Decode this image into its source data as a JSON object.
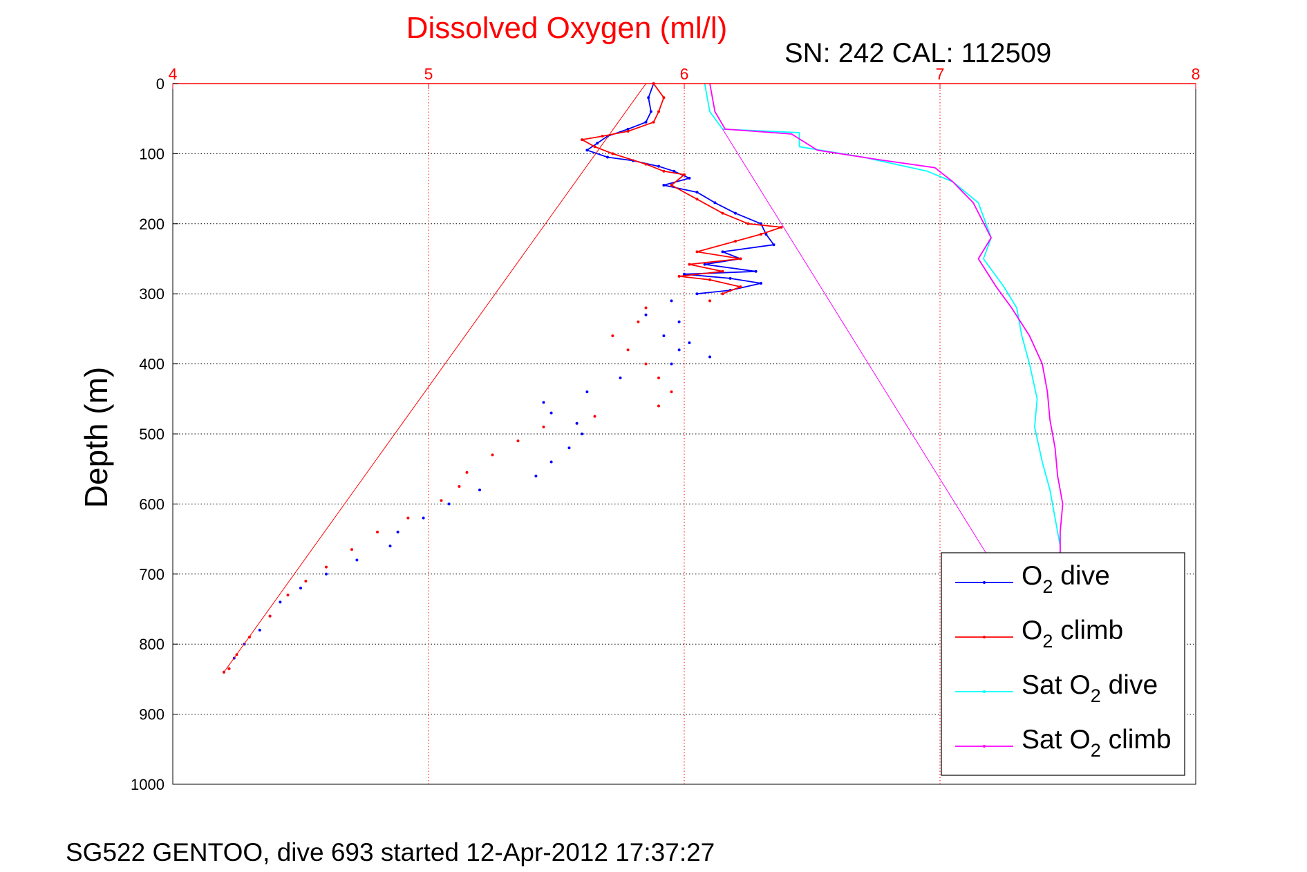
{
  "chart_data": {
    "type": "line",
    "title": "Dissolved Oxygen (ml/l)",
    "subtitle": "SN: 242  CAL: 112509",
    "ylabel": "Depth (m)",
    "footer": "SG522 GENTOO, dive 693 started 12-Apr-2012 17:37:27",
    "xlim": [
      4,
      8
    ],
    "ylim": [
      0,
      1000
    ],
    "y_reversed": true,
    "x_axis_position": "top",
    "x_ticks": [
      4,
      5,
      6,
      7,
      8
    ],
    "y_ticks": [
      0,
      100,
      200,
      300,
      400,
      500,
      600,
      700,
      800,
      900,
      1000
    ],
    "grid": true,
    "legend_position": "bottom-right",
    "colors": {
      "o2_dive": "#0000ff",
      "o2_climb": "#ff0000",
      "sat_dive": "#00ffff",
      "sat_climb": "#ff00ff",
      "xaxis": "#ff0000",
      "grid_x": "#ff0000",
      "grid_y": "#000000"
    },
    "series": [
      {
        "key": "o2_dive",
        "legend": {
          "main": "O",
          "sub": "2",
          "rest": " dive"
        },
        "color": "#0000ff",
        "style": "line+dots",
        "points": [
          [
            5.88,
            0
          ],
          [
            5.86,
            20
          ],
          [
            5.87,
            40
          ],
          [
            5.85,
            55
          ],
          [
            5.78,
            65
          ],
          [
            5.7,
            75
          ],
          [
            5.66,
            85
          ],
          [
            5.62,
            95
          ],
          [
            5.7,
            105
          ],
          [
            5.8,
            110
          ],
          [
            5.9,
            118
          ],
          [
            5.96,
            125
          ],
          [
            6.02,
            135
          ],
          [
            5.92,
            145
          ],
          [
            6.05,
            155
          ],
          [
            6.12,
            170
          ],
          [
            6.2,
            185
          ],
          [
            6.3,
            200
          ],
          [
            6.32,
            215
          ],
          [
            6.35,
            230
          ],
          [
            6.15,
            240
          ],
          [
            6.22,
            250
          ],
          [
            6.08,
            258
          ],
          [
            6.28,
            268
          ],
          [
            6.0,
            272
          ],
          [
            6.18,
            278
          ],
          [
            6.3,
            285
          ],
          [
            6.18,
            295
          ],
          [
            6.05,
            300
          ]
        ]
      },
      {
        "key": "o2_dive_deep",
        "color": "#0000ff",
        "style": "dots",
        "points": [
          [
            5.95,
            310
          ],
          [
            5.85,
            330
          ],
          [
            5.98,
            340
          ],
          [
            5.92,
            360
          ],
          [
            6.02,
            370
          ],
          [
            5.98,
            380
          ],
          [
            6.1,
            390
          ],
          [
            5.95,
            400
          ],
          [
            5.75,
            420
          ],
          [
            5.62,
            440
          ],
          [
            5.45,
            455
          ],
          [
            5.48,
            470
          ],
          [
            5.58,
            485
          ],
          [
            5.6,
            500
          ],
          [
            5.55,
            520
          ],
          [
            5.48,
            540
          ],
          [
            5.42,
            560
          ],
          [
            5.2,
            580
          ],
          [
            5.08,
            600
          ],
          [
            4.98,
            620
          ],
          [
            4.88,
            640
          ],
          [
            4.85,
            660
          ],
          [
            4.72,
            680
          ],
          [
            4.6,
            700
          ],
          [
            4.5,
            720
          ],
          [
            4.42,
            740
          ],
          [
            4.38,
            760
          ],
          [
            4.34,
            780
          ],
          [
            4.28,
            800
          ],
          [
            4.24,
            820
          ],
          [
            4.22,
            835
          ],
          [
            4.2,
            840
          ]
        ]
      },
      {
        "key": "o2_climb",
        "legend": {
          "main": "O",
          "sub": "2",
          "rest": " climb"
        },
        "color": "#ff0000",
        "style": "line+dots",
        "points": [
          [
            5.88,
            0
          ],
          [
            5.92,
            20
          ],
          [
            5.9,
            40
          ],
          [
            5.88,
            55
          ],
          [
            5.78,
            68
          ],
          [
            5.68,
            75
          ],
          [
            5.6,
            80
          ],
          [
            5.65,
            90
          ],
          [
            5.72,
            100
          ],
          [
            5.85,
            115
          ],
          [
            5.92,
            125
          ],
          [
            6.0,
            130
          ],
          [
            5.95,
            145
          ],
          [
            6.05,
            165
          ],
          [
            6.15,
            185
          ],
          [
            6.25,
            200
          ],
          [
            6.38,
            205
          ],
          [
            6.3,
            215
          ],
          [
            6.2,
            225
          ],
          [
            6.05,
            240
          ],
          [
            6.22,
            250
          ],
          [
            6.02,
            258
          ],
          [
            6.15,
            268
          ],
          [
            5.98,
            275
          ],
          [
            6.1,
            280
          ],
          [
            6.22,
            290
          ],
          [
            6.15,
            300
          ]
        ]
      },
      {
        "key": "o2_climb_deep",
        "color": "#ff0000",
        "style": "dots",
        "points": [
          [
            6.1,
            310
          ],
          [
            5.85,
            320
          ],
          [
            5.82,
            340
          ],
          [
            5.72,
            360
          ],
          [
            5.78,
            380
          ],
          [
            5.85,
            400
          ],
          [
            5.9,
            420
          ],
          [
            5.95,
            440
          ],
          [
            5.9,
            460
          ],
          [
            5.65,
            475
          ],
          [
            5.45,
            490
          ],
          [
            5.35,
            510
          ],
          [
            5.25,
            530
          ],
          [
            5.15,
            555
          ],
          [
            5.12,
            575
          ],
          [
            5.05,
            595
          ],
          [
            4.92,
            620
          ],
          [
            4.8,
            640
          ],
          [
            4.7,
            665
          ],
          [
            4.6,
            690
          ],
          [
            4.52,
            710
          ],
          [
            4.45,
            730
          ],
          [
            4.38,
            760
          ],
          [
            4.3,
            790
          ],
          [
            4.25,
            815
          ],
          [
            4.22,
            835
          ],
          [
            4.2,
            840
          ]
        ]
      },
      {
        "key": "sat_dive",
        "legend": {
          "main": "Sat O",
          "sub": "2",
          "rest": " dive"
        },
        "color": "#00ffff",
        "style": "line",
        "points": [
          [
            6.08,
            0
          ],
          [
            6.1,
            40
          ],
          [
            6.15,
            65
          ],
          [
            6.45,
            70
          ],
          [
            6.45,
            90
          ],
          [
            6.7,
            105
          ],
          [
            6.95,
            125
          ],
          [
            7.05,
            140
          ],
          [
            7.15,
            170
          ],
          [
            7.2,
            220
          ],
          [
            7.17,
            250
          ],
          [
            7.25,
            290
          ],
          [
            7.3,
            320
          ],
          [
            7.32,
            360
          ],
          [
            7.35,
            400
          ],
          [
            7.38,
            450
          ],
          [
            7.37,
            490
          ],
          [
            7.4,
            540
          ],
          [
            7.43,
            580
          ],
          [
            7.45,
            620
          ],
          [
            7.47,
            660
          ],
          [
            7.47,
            670
          ]
        ]
      },
      {
        "key": "sat_climb",
        "legend": {
          "main": "Sat O",
          "sub": "2",
          "rest": " climb"
        },
        "color": "#ff00ff",
        "style": "line",
        "points": [
          [
            6.1,
            0
          ],
          [
            6.12,
            40
          ],
          [
            6.16,
            65
          ],
          [
            6.42,
            72
          ],
          [
            6.52,
            95
          ],
          [
            6.75,
            108
          ],
          [
            6.98,
            120
          ],
          [
            7.05,
            140
          ],
          [
            7.13,
            170
          ],
          [
            7.2,
            220
          ],
          [
            7.15,
            250
          ],
          [
            7.22,
            290
          ],
          [
            7.28,
            320
          ],
          [
            7.35,
            360
          ],
          [
            7.4,
            400
          ],
          [
            7.42,
            440
          ],
          [
            7.43,
            480
          ],
          [
            7.45,
            520
          ],
          [
            7.46,
            560
          ],
          [
            7.48,
            600
          ],
          [
            7.47,
            640
          ],
          [
            7.47,
            670
          ]
        ]
      },
      {
        "key": "ref_line_red",
        "color": "#ff0000",
        "style": "thin",
        "points": [
          [
            5.85,
            0
          ],
          [
            4.2,
            840
          ]
        ]
      },
      {
        "key": "ref_line_magenta",
        "color": "#ff00ff",
        "style": "thin",
        "points": [
          [
            6.15,
            65
          ],
          [
            7.18,
            670
          ]
        ]
      }
    ]
  }
}
